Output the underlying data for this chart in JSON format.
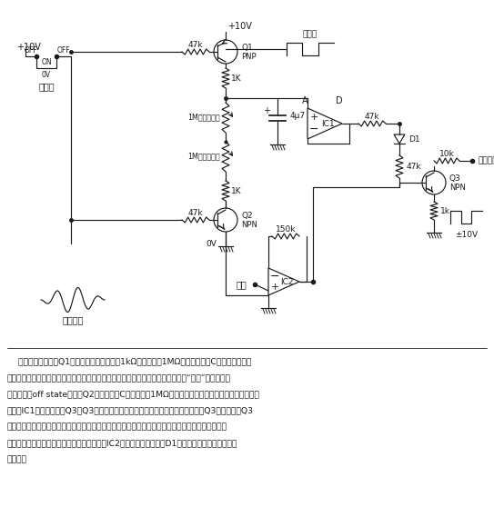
{
  "bg_color": "#ffffff",
  "line_color": "#1a1a1a",
  "fig_width": 5.43,
  "fig_height": 5.69,
  "dpi": 100,
  "description": [
    "    当门电压加入时，Q1导通，并且通过一个与1kΩ电阴串联的1MΩ电位器对电容C进行充电，调节",
    "该电位器即可改变上升时间常数。快速的上升产生一个撞击声，缓慢的上升则产生“混响”。当门电压",
    "处于关态（off state）时，Q2导通，电容C通过另一个1MΩ电位器对地放电。由电容充放电所形成的",
    "包络被IC1缓冲，并送给Q3。Q3在此是一个晶体管斩波器。波形为方波的乐音加到Q3的基极，使Q3",
    "导通或截止，从而使包络在规定的区间内被切割。切割区间的大小由方波的占空比决定。合成波形的",
    "振幅与包络相同，并且具有方波的谐波结构。IC2对信号进行缓冲，而D1则保证在音调的末尾把包络",
    "衰减掉。"
  ]
}
